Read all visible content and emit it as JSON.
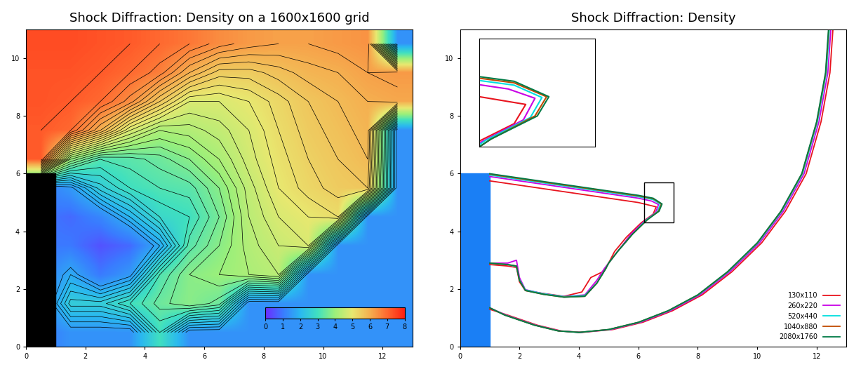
{
  "chart_data": [
    {
      "type": "heatmap",
      "title": "Shock Diffraction: Density on a 1600x1600 grid",
      "xlim": [
        0,
        13
      ],
      "ylim": [
        0,
        11
      ],
      "xticks": [
        0,
        2,
        4,
        6,
        8,
        10,
        12
      ],
      "yticks": [
        0,
        2,
        4,
        6,
        8,
        10
      ],
      "cell_x": [
        0.5,
        1.5,
        2.5,
        3.5,
        4.5,
        5.5,
        6.5,
        7.5,
        8.5,
        9.5,
        10.5,
        11.5,
        12.5
      ],
      "cell_y": [
        0.5,
        1.5,
        2.5,
        3.5,
        4.5,
        5.5,
        6.5,
        7.5,
        8.5,
        9.5,
        10.5
      ],
      "cells": [
        [
          1.0,
          1.4,
          1.4,
          1.4,
          3.0,
          1.4,
          1.4,
          1.4,
          1.4,
          1.4,
          1.4,
          1.4,
          1.4
        ],
        [
          1.0,
          2.5,
          2.5,
          3.0,
          3.5,
          3.8,
          3.5,
          1.4,
          1.4,
          1.4,
          1.4,
          1.4,
          1.4
        ],
        [
          1.0,
          1.8,
          1.0,
          1.5,
          3.2,
          3.8,
          4.0,
          4.2,
          4.4,
          1.4,
          1.4,
          1.4,
          1.4
        ],
        [
          1.0,
          1.0,
          0.5,
          0.8,
          1.8,
          3.3,
          3.8,
          4.3,
          4.6,
          4.8,
          1.4,
          1.4,
          1.4
        ],
        [
          1.0,
          0.8,
          1.2,
          2.0,
          2.8,
          3.0,
          3.6,
          4.4,
          4.8,
          5.0,
          5.2,
          1.4,
          1.4
        ],
        [
          1.0,
          1.5,
          2.5,
          3.0,
          3.2,
          3.3,
          3.8,
          4.5,
          5.0,
          5.3,
          5.5,
          5.6,
          1.4
        ],
        [
          7.2,
          4.0,
          3.2,
          3.3,
          3.5,
          3.8,
          4.2,
          4.7,
          5.1,
          5.4,
          5.6,
          5.8,
          1.4
        ],
        [
          7.2,
          7.0,
          6.0,
          4.8,
          4.2,
          4.3,
          4.5,
          4.8,
          5.2,
          5.5,
          5.7,
          5.9,
          1.4
        ],
        [
          7.3,
          7.2,
          7.0,
          6.5,
          5.6,
          4.8,
          4.8,
          5.0,
          5.3,
          5.6,
          5.8,
          6.0,
          6.1
        ],
        [
          7.3,
          7.3,
          7.2,
          7.0,
          6.7,
          6.0,
          5.5,
          5.5,
          5.7,
          5.9,
          6.0,
          6.2,
          6.3
        ],
        [
          7.4,
          7.4,
          7.3,
          7.2,
          7.0,
          6.8,
          6.5,
          6.3,
          6.2,
          6.2,
          6.3,
          6.4,
          1.4
        ]
      ],
      "contour_levels": [
        1.6,
        1.8,
        2.0,
        2.2,
        2.4,
        2.6,
        2.8,
        3.0,
        3.2,
        3.4,
        3.6,
        3.8,
        4.0,
        4.2,
        4.4,
        4.6,
        4.8,
        5.0,
        5.2,
        5.4,
        5.6,
        5.8,
        6.0,
        6.2,
        6.4,
        6.6,
        6.8,
        7.0,
        7.2
      ],
      "colorbar": {
        "range": [
          0,
          8
        ],
        "ticks": [
          0,
          1,
          2,
          3,
          4,
          5,
          6,
          7,
          8
        ]
      },
      "wall": {
        "x": [
          0,
          1
        ],
        "y": [
          0,
          6
        ],
        "color": "#000000"
      }
    },
    {
      "type": "line",
      "title": "Shock Diffraction: Density",
      "xlim": [
        0,
        13
      ],
      "ylim": [
        0,
        11
      ],
      "xticks": [
        0,
        2,
        4,
        6,
        8,
        10,
        12
      ],
      "yticks": [
        0,
        2,
        4,
        6,
        8,
        10
      ],
      "legend": "lower right",
      "wall": {
        "x": [
          0,
          1
        ],
        "y": [
          0,
          6
        ],
        "color": "#1a7ff5"
      },
      "inset": {
        "xlim": [
          6.2,
          7.2
        ],
        "ylim": [
          4.3,
          5.7
        ]
      },
      "series": [
        {
          "name": "130x110",
          "color": "#e8141e",
          "x": [
            1.0,
            1.6,
            2.6,
            3.4,
            4.1,
            5.15,
            6.15,
            7.15,
            8.15,
            9.15,
            10.15,
            10.95,
            11.65,
            12.15,
            12.45,
            12.55,
            null,
            1.0,
            2.0,
            3.0,
            4.0,
            5.0,
            6.0,
            6.4,
            6.6,
            6.5,
            6.1,
            5.6,
            5.2,
            5.0,
            4.8,
            4.4,
            4.1,
            3.5,
            2.8,
            2.2,
            2.0,
            1.9,
            1.6,
            1.0
          ],
          "y": [
            1.3,
            1.1,
            0.75,
            0.55,
            0.5,
            0.6,
            0.85,
            1.25,
            1.8,
            2.6,
            3.6,
            4.7,
            6.0,
            7.8,
            9.5,
            11.0,
            null,
            5.75,
            5.6,
            5.45,
            5.3,
            5.15,
            5.0,
            4.9,
            4.85,
            4.6,
            4.3,
            3.8,
            3.3,
            2.9,
            2.6,
            2.4,
            1.9,
            1.75,
            1.85,
            1.95,
            2.25,
            2.75,
            2.8,
            2.85
          ]
        },
        {
          "name": "260x220",
          "color": "#c800e6",
          "x": [
            1.0,
            1.55,
            2.55,
            3.35,
            4.05,
            5.08,
            6.08,
            7.08,
            8.08,
            9.08,
            10.08,
            10.88,
            11.58,
            12.08,
            12.38,
            12.48,
            null,
            1.0,
            2.0,
            3.0,
            4.0,
            5.0,
            6.0,
            6.45,
            6.68,
            6.58,
            6.2,
            5.75,
            5.3,
            5.0,
            4.85,
            4.6,
            4.2,
            3.5,
            2.8,
            2.2,
            2.0,
            1.9,
            1.6,
            1.0
          ],
          "y": [
            1.35,
            1.1,
            0.75,
            0.55,
            0.5,
            0.6,
            0.85,
            1.25,
            1.8,
            2.6,
            3.6,
            4.7,
            6.0,
            7.8,
            9.5,
            11.0,
            null,
            5.9,
            5.75,
            5.6,
            5.45,
            5.3,
            5.15,
            5.05,
            4.93,
            4.65,
            4.35,
            3.9,
            3.3,
            2.9,
            2.7,
            2.3,
            1.8,
            1.74,
            1.84,
            1.98,
            2.4,
            3.0,
            2.9,
            2.9
          ]
        },
        {
          "name": "520x440",
          "color": "#00dede",
          "x": [
            1.0,
            1.52,
            2.52,
            3.32,
            4.02,
            5.03,
            6.03,
            7.03,
            8.03,
            9.03,
            10.03,
            10.83,
            11.53,
            12.03,
            12.33,
            12.43,
            null,
            1.0,
            2.0,
            3.0,
            4.0,
            5.0,
            6.0,
            6.5,
            6.74,
            6.64,
            6.25,
            5.8,
            5.3,
            5.0,
            4.9,
            4.6,
            4.2,
            3.5,
            2.8,
            2.2,
            2.0,
            1.9,
            1.6,
            1.0
          ],
          "y": [
            1.35,
            1.1,
            0.75,
            0.55,
            0.5,
            0.6,
            0.85,
            1.25,
            1.8,
            2.6,
            3.6,
            4.7,
            6.0,
            7.8,
            9.5,
            11.0,
            null,
            5.95,
            5.8,
            5.65,
            5.5,
            5.35,
            5.2,
            5.1,
            4.94,
            4.68,
            4.38,
            3.9,
            3.3,
            2.9,
            2.7,
            2.2,
            1.78,
            1.74,
            1.84,
            1.97,
            2.33,
            2.78,
            2.85,
            2.9
          ]
        },
        {
          "name": "1040x880",
          "color": "#c04a00",
          "x": [
            1.0,
            1.51,
            2.51,
            3.31,
            4.01,
            5.01,
            6.01,
            7.01,
            8.01,
            9.01,
            10.01,
            10.81,
            11.51,
            12.01,
            12.31,
            12.41,
            null,
            1.0,
            2.0,
            3.0,
            4.0,
            5.0,
            6.0,
            6.5,
            6.78,
            6.68,
            6.3,
            5.8,
            5.3,
            5.0,
            4.9,
            4.6,
            4.2,
            3.5,
            2.8,
            2.2,
            2.0,
            1.9,
            1.6,
            1.0
          ],
          "y": [
            1.35,
            1.1,
            0.75,
            0.55,
            0.5,
            0.6,
            0.85,
            1.25,
            1.8,
            2.6,
            3.6,
            4.7,
            6.0,
            7.8,
            9.5,
            11.0,
            null,
            5.98,
            5.83,
            5.68,
            5.53,
            5.38,
            5.23,
            5.13,
            4.95,
            4.7,
            4.4,
            3.9,
            3.3,
            2.9,
            2.7,
            2.2,
            1.75,
            1.72,
            1.82,
            1.95,
            2.3,
            2.8,
            2.85,
            2.9
          ]
        },
        {
          "name": "2080x1760",
          "color": "#007a45",
          "x": [
            1.0,
            1.5,
            2.5,
            3.3,
            4.0,
            5.0,
            6.0,
            7.0,
            8.0,
            9.0,
            10.0,
            10.8,
            11.5,
            12.0,
            12.3,
            12.4,
            null,
            1.0,
            2.0,
            3.0,
            4.0,
            5.0,
            6.0,
            6.5,
            6.8,
            6.7,
            6.3,
            5.8,
            5.3,
            5.0,
            4.9,
            4.6,
            4.2,
            3.5,
            2.8,
            2.2,
            2.0,
            1.9,
            1.6,
            1.0
          ],
          "y": [
            1.35,
            1.1,
            0.75,
            0.55,
            0.5,
            0.6,
            0.85,
            1.25,
            1.8,
            2.6,
            3.6,
            4.7,
            6.0,
            7.8,
            9.5,
            11.0,
            null,
            6.0,
            5.85,
            5.7,
            5.55,
            5.4,
            5.25,
            5.15,
            4.95,
            4.7,
            4.4,
            3.9,
            3.3,
            2.9,
            2.7,
            2.2,
            1.75,
            1.72,
            1.82,
            1.95,
            2.3,
            2.8,
            2.85,
            2.9
          ]
        }
      ]
    }
  ]
}
